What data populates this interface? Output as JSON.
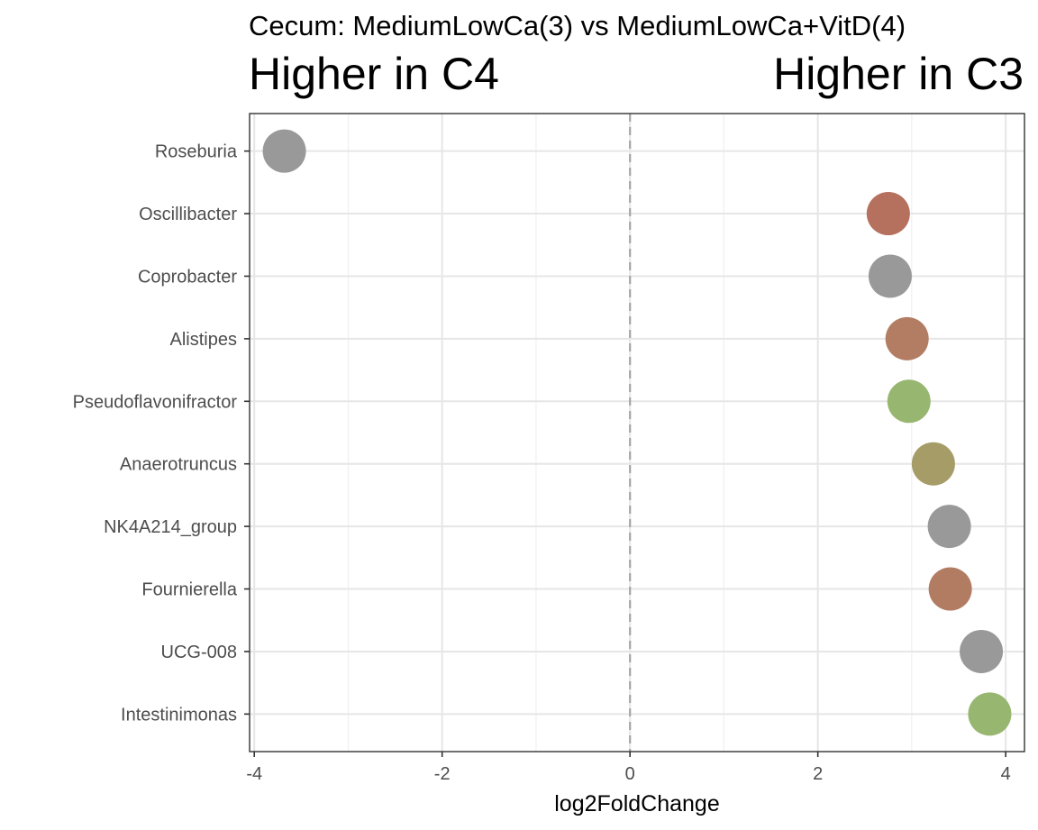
{
  "chart_data": {
    "type": "scatter",
    "subtitle": "Cecum: MediumLowCa(3) vs MediumLowCa+VitD(4)",
    "left_label": "Higher in C4",
    "right_label": "Higher in C3",
    "xlabel": "log2FoldChange",
    "ylabel": "",
    "xlim": [
      -4.05,
      4.2
    ],
    "x_ticks": [
      -4,
      -2,
      0,
      2,
      4
    ],
    "x_tick_labels": [
      "-4",
      "-2",
      "0",
      "2",
      "4"
    ],
    "reference_line": 0,
    "grid": true,
    "categories": [
      "Roseburia",
      "Oscillibacter",
      "Coprobacter",
      "Alistipes",
      "Pseudoflavonifractor",
      "Anaerotruncus",
      "NK4A214_group",
      "Fournierella",
      "UCG-008",
      "Intestinimonas"
    ],
    "points": [
      {
        "label": "Roseburia",
        "x": -3.68,
        "color": "#999999"
      },
      {
        "label": "Oscillibacter",
        "x": 2.75,
        "color": "#b5705e"
      },
      {
        "label": "Coprobacter",
        "x": 2.77,
        "color": "#999999"
      },
      {
        "label": "Alistipes",
        "x": 2.95,
        "color": "#b27d62"
      },
      {
        "label": "Pseudoflavonifractor",
        "x": 2.97,
        "color": "#97b770"
      },
      {
        "label": "Anaerotruncus",
        "x": 3.23,
        "color": "#a59c67"
      },
      {
        "label": "NK4A214_group",
        "x": 3.4,
        "color": "#999999"
      },
      {
        "label": "Fournierella",
        "x": 3.41,
        "color": "#b27c62"
      },
      {
        "label": "UCG-008",
        "x": 3.74,
        "color": "#999999"
      },
      {
        "label": "Intestinimonas",
        "x": 3.83,
        "color": "#97b770"
      }
    ]
  }
}
